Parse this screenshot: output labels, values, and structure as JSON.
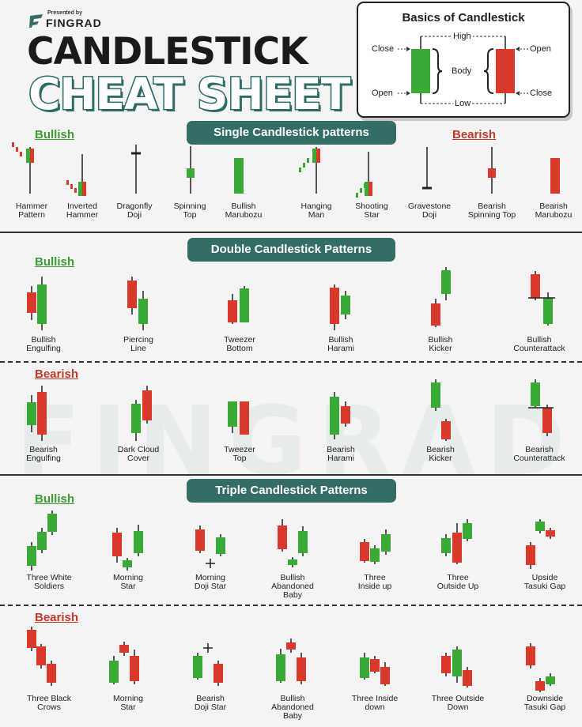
{
  "header": {
    "presented_by": "Presented by",
    "brand": "FINGRAD",
    "title_line1": "CANDLESTICK",
    "title_line2": "CHEAT SHEET",
    "logo_icon": "fingrad-logo-icon"
  },
  "basics": {
    "title": "Basics of Candlestick",
    "high": "High",
    "low": "Low",
    "body": "Body",
    "left_top": "Close",
    "left_bottom": "Open",
    "right_top": "Open",
    "right_bottom": "Close"
  },
  "watermark": "FINGRAD",
  "colors": {
    "bull": "#3aa935",
    "bear": "#d8392b",
    "banner": "#336d66"
  },
  "sections": {
    "single": {
      "title": "Single Candlestick patterns",
      "bullish": "Bullish",
      "bearish": "Bearish",
      "patterns": [
        {
          "name": "Hammer\nPattern"
        },
        {
          "name": "Inverted\nHammer"
        },
        {
          "name": "Dragonfly\nDoji"
        },
        {
          "name": "Spinning\nTop"
        },
        {
          "name": "Bullish\nMarubozu"
        },
        {
          "name": "Hanging\nMan"
        },
        {
          "name": "Shooting\nStar"
        },
        {
          "name": "Gravestone\nDoji"
        },
        {
          "name": "Bearish\nSpinning Top"
        },
        {
          "name": "Bearish\nMarubozu"
        }
      ]
    },
    "double": {
      "title": "Double Candlestick Patterns",
      "bullish": "Bullish",
      "bearish": "Bearish",
      "bull_patterns": [
        "Bullish\nEngulfing",
        "Piercing\nLine",
        "Tweezer\nBottom",
        "Bullish\nHarami",
        "Bullish\nKicker",
        "Bullish\nCounterattack"
      ],
      "bear_patterns": [
        "Bearish\nEngulfing",
        "Dark Cloud\nCover",
        "Tweezer\nTop",
        "Bearish\nHarami",
        "Bearish\nKicker",
        "Bearish\nCounterattack"
      ]
    },
    "triple": {
      "title": "Triple Candlestick Patterns",
      "bullish": "Bullish",
      "bearish": "Bearish",
      "bull_patterns": [
        "Three White\nSoldiers",
        "Morning\nStar",
        "Morning\nDoji Star",
        "Bullish\nAbandoned\nBaby",
        "Three\nInside up",
        "Three\nOutside Up",
        "Upside\nTasuki Gap"
      ],
      "bear_patterns": [
        "Three Black\nCrows",
        "Morning\nStar",
        "Bearish\nDoji Star",
        "Bullish\nAbandoned\nBaby",
        "Three Inside\ndown",
        "Three Outside\nDown",
        "Downside\nTasuki Gap"
      ]
    }
  }
}
